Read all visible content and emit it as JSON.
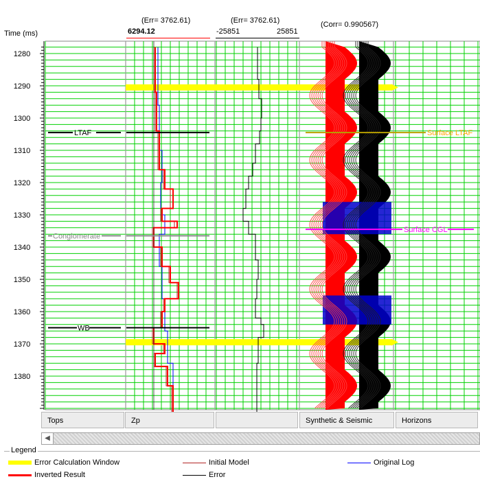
{
  "header": {
    "time_label": "Time (ms)",
    "zp_err": "(Err= 3762.61)",
    "zp_value": "6294.12",
    "err_err": "(Err= 3762.61)",
    "err_min": "-25851",
    "err_max": "25851",
    "corr": "(Corr= 0.990567)"
  },
  "axis": {
    "time_ticks": [
      "1280",
      "1290",
      "1300",
      "1310",
      "1320",
      "1330",
      "1340",
      "1350",
      "1360",
      "1370",
      "1380"
    ]
  },
  "tops": {
    "ltaf": "LTAF",
    "conglomerate": "Conglomerate",
    "wb": "WB"
  },
  "horizons": {
    "surface_ltaf": "Surface LTAF",
    "surface_cgl": "Surface CGL"
  },
  "tabs": [
    "Tops",
    "Zp",
    "",
    "Synthetic & Seismic",
    "Horizons"
  ],
  "legend": {
    "title": "Legend",
    "items": [
      {
        "label": "Error Calculation Window",
        "color": "#ffff00"
      },
      {
        "label": "Inverted Result",
        "color": "#ff0000"
      },
      {
        "label": "Initial Model",
        "color": "#b22222"
      },
      {
        "label": "Error",
        "color": "#000000"
      },
      {
        "label": "Original Log",
        "color": "#0000ff"
      }
    ]
  },
  "colors": {
    "grid": "#00d000",
    "window": "#ffff00",
    "inverted": "#ff0000",
    "initial": "#b22222",
    "original": "#0000ff",
    "error": "#000000",
    "ltaf_horizon": "#ffa500",
    "cgl_horizon": "#ff00ff"
  }
}
